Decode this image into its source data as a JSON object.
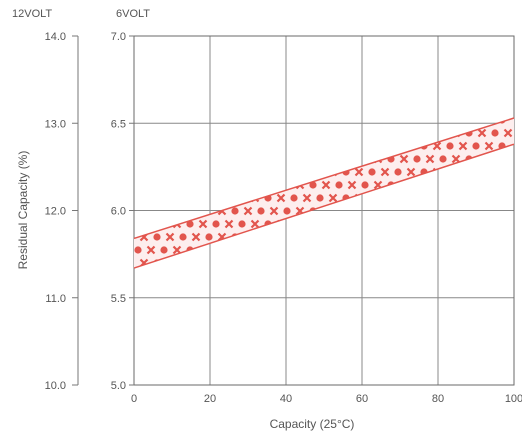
{
  "chart_data": {
    "type": "area",
    "xlabel": "Capacity (25°C)",
    "ylabel": "Residual Capacity (%)",
    "left_axis_title": "12VOLT",
    "right_axis_title": "6VOLT",
    "x_ticks": [
      "0",
      "20",
      "40",
      "60",
      "80",
      "100"
    ],
    "xlim": [
      0,
      100
    ],
    "y_ticks_12v": [
      "10.0",
      "11.0",
      "12.0",
      "13.0",
      "14.0"
    ],
    "ylim_12v": [
      10.0,
      14.0
    ],
    "y_ticks_6v": [
      "5.0",
      "5.5",
      "6.0",
      "6.5",
      "7.0"
    ],
    "ylim_6v": [
      5.0,
      7.0
    ],
    "grid": true,
    "band": {
      "upper": [
        [
          0,
          5.84
        ],
        [
          100,
          6.53
        ]
      ],
      "lower": [
        [
          0,
          5.67
        ],
        [
          100,
          6.38
        ]
      ],
      "y_units": "6VOLT"
    },
    "colors": {
      "band_edge": "#e2554d",
      "band_fill": "#fdeeee",
      "pattern": "#e2554d",
      "grid": "#888888",
      "axis_text": "#555555"
    }
  }
}
